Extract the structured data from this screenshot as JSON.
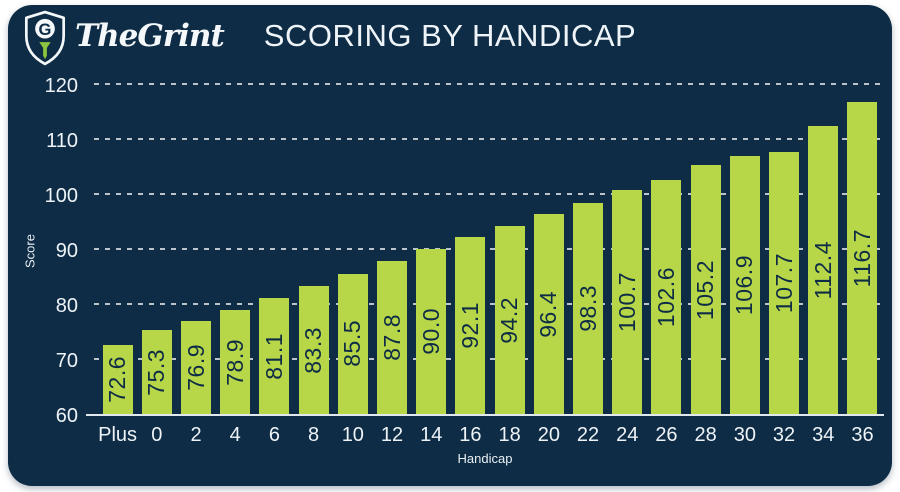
{
  "header": {
    "brand": "TheGrint",
    "title": "SCORING BY HANDICAP"
  },
  "colors": {
    "card_bg": "#0e2c45",
    "bar_fill": "#b7d748",
    "bar_label_text": "#0e2c45",
    "axis_text": "#eef3f7",
    "gridline": "rgba(255,255,255,0.72)",
    "logo_tee_green": "#8cc63e"
  },
  "chart_data": {
    "type": "bar",
    "title": "SCORING BY HANDICAP",
    "categories": [
      "Plus",
      "0",
      "2",
      "4",
      "6",
      "8",
      "10",
      "12",
      "14",
      "16",
      "18",
      "20",
      "22",
      "24",
      "26",
      "28",
      "30",
      "32",
      "34",
      "36"
    ],
    "values": [
      72.6,
      75.3,
      76.9,
      78.9,
      81.1,
      83.3,
      85.5,
      87.8,
      90.0,
      92.1,
      94.2,
      96.4,
      98.3,
      100.7,
      102.6,
      105.2,
      106.9,
      107.7,
      112.4,
      116.7
    ],
    "xlabel": "Handicap",
    "ylabel": "Score",
    "ylim": [
      60,
      120
    ],
    "yticks": [
      60,
      70,
      80,
      90,
      100,
      110,
      120
    ],
    "grid": "horizontal-dashed",
    "legend": "none",
    "bar_value_labels": "rotated 90deg inside bars, one decimal"
  }
}
